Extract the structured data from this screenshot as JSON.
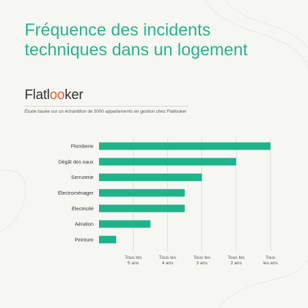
{
  "header": {
    "title": "Fréquence des incidents techniques dans un logement",
    "logo_part1": "Flatl",
    "logo_part2": "oo",
    "logo_part3": "ker",
    "subtitle": "Étude basée sur un échantillon de 5000 appartements en gestion chez Flatlooker"
  },
  "colors": {
    "bar": "#1fb38a",
    "title": "#27b48a",
    "logo_accent": "#e8622d",
    "background": "#f6f6f3"
  },
  "chart_data": {
    "type": "bar",
    "orientation": "horizontal",
    "categories": [
      "Plomberie",
      "Dégât des eaux",
      "Serrurerie",
      "Électroménager",
      "Électricité",
      "Aération",
      "Peinture"
    ],
    "values": [
      5,
      4,
      3,
      2.5,
      2.5,
      1.5,
      0.5
    ],
    "ticks": [
      1,
      2,
      3,
      4,
      5
    ],
    "tick_labels": [
      [
        "Tous les",
        "5 ans"
      ],
      [
        "Tous les",
        "4 ans"
      ],
      [
        "Tous les",
        "3 ans"
      ],
      [
        "Tous les",
        "2 ans"
      ],
      [
        "Tous",
        "les ans"
      ]
    ],
    "xlim": [
      0,
      5
    ],
    "grid": true
  }
}
